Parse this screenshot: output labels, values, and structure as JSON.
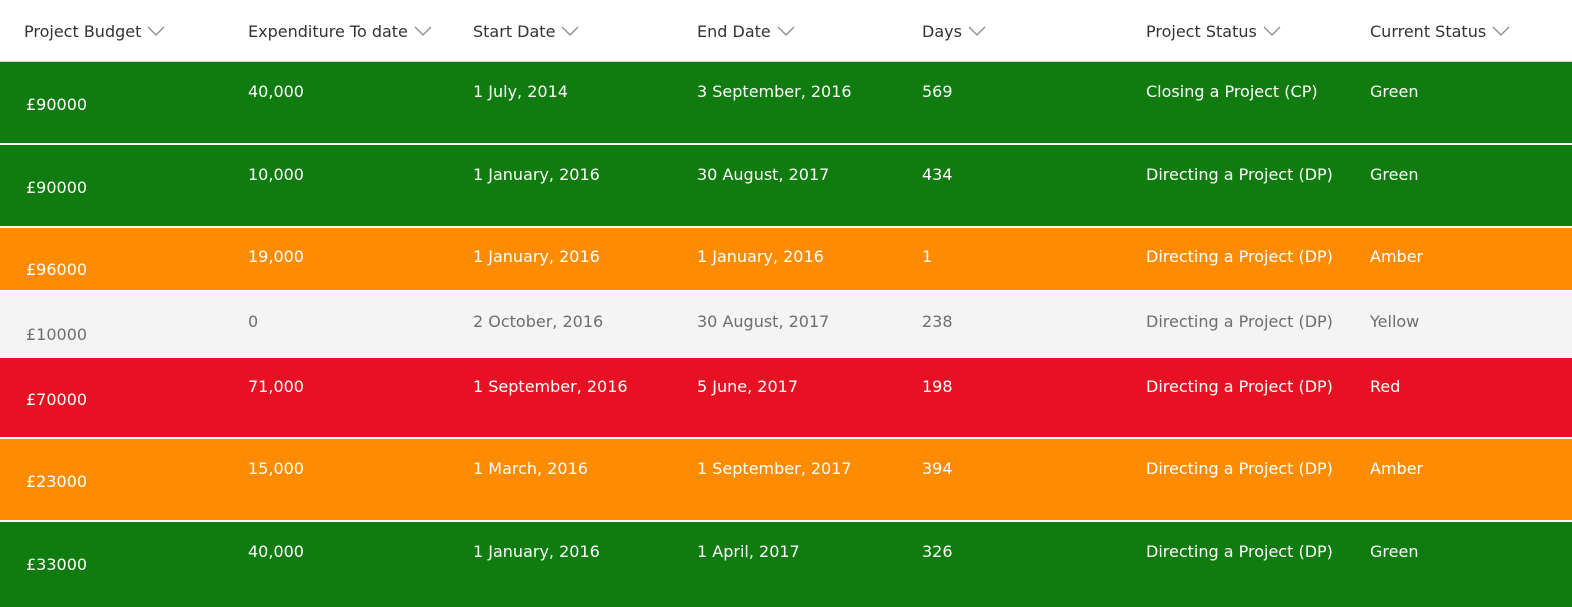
{
  "table": {
    "columns": [
      {
        "key": "budget",
        "label": "Project Budget"
      },
      {
        "key": "expenditure",
        "label": "Expenditure To date"
      },
      {
        "key": "start",
        "label": "Start Date"
      },
      {
        "key": "end",
        "label": "End Date"
      },
      {
        "key": "days",
        "label": "Days"
      },
      {
        "key": "project_status",
        "label": "Project Status"
      },
      {
        "key": "current_status",
        "label": "Current Status"
      }
    ],
    "rows": [
      {
        "budget": "£90000",
        "expenditure": "40,000",
        "start": "1 July, 2014",
        "end": "3 September, 2016",
        "days": "569",
        "project_status": "Closing a Project (CP)",
        "current_status": "Green"
      },
      {
        "budget": "£90000",
        "expenditure": "10,000",
        "start": "1 January, 2016",
        "end": "30 August, 2017",
        "days": "434",
        "project_status": "Directing a Project (DP)",
        "current_status": "Green"
      },
      {
        "budget": "£96000",
        "expenditure": "19,000",
        "start": "1 January, 2016",
        "end": "1 January, 2016",
        "days": "1",
        "project_status": "Directing a Project (DP)",
        "current_status": "Amber"
      },
      {
        "budget": "£10000",
        "expenditure": "0",
        "start": "2 October, 2016",
        "end": "30 August, 2017",
        "days": "238",
        "project_status": "Directing a Project (DP)",
        "current_status": "Yellow"
      },
      {
        "budget": "£70000",
        "expenditure": "71,000",
        "start": "1 September, 2016",
        "end": "5 June, 2017",
        "days": "198",
        "project_status": "Directing a Project (DP)",
        "current_status": "Red"
      },
      {
        "budget": "£23000",
        "expenditure": "15,000",
        "start": "1 March, 2016",
        "end": "1 September, 2017",
        "days": "394",
        "project_status": "Directing a Project (DP)",
        "current_status": "Amber"
      },
      {
        "budget": "£33000",
        "expenditure": "40,000",
        "start": "1 January, 2016",
        "end": "1 April, 2017",
        "days": "326",
        "project_status": "Directing a Project (DP)",
        "current_status": "Green"
      }
    ]
  },
  "colors": {
    "Green": "#107c10",
    "Amber": "#ff8c00",
    "Yellow": "#f4f4f4",
    "Red": "#e81123",
    "text_on_color": "#ffffff",
    "text_on_light": "#6e6e6e",
    "header_text": "#333333",
    "chevron": "#8a8a8a"
  }
}
